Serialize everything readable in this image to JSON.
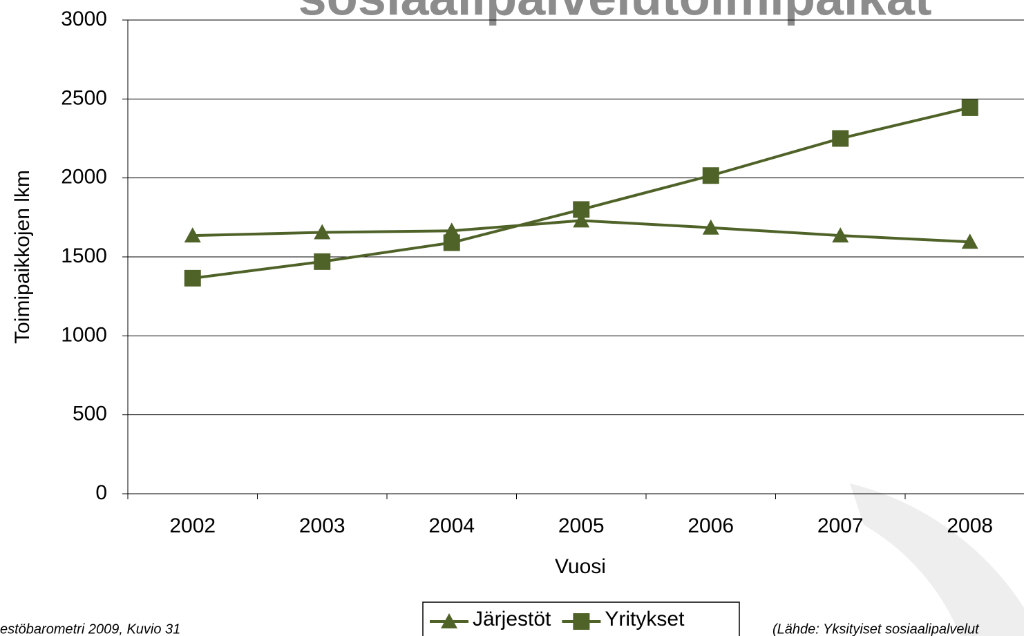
{
  "chart_data": {
    "type": "line",
    "title": "sosiaalipalvelutoimipaikat",
    "x_label": "Vuosi",
    "y_label": "Toimipaikkojen lkm",
    "categories": [
      "2002",
      "2003",
      "2004",
      "2005",
      "2006",
      "2007",
      "2008"
    ],
    "series": [
      {
        "name": "Järjestöt",
        "color": "#4f6228",
        "marker": "triangle",
        "values": [
          1635,
          1655,
          1665,
          1730,
          1685,
          1635,
          1595
        ]
      },
      {
        "name": "Yritykset",
        "color": "#4f6228",
        "marker": "square",
        "values": [
          1365,
          1470,
          1590,
          1800,
          2015,
          2250,
          2445
        ]
      }
    ],
    "ylim": [
      0,
      3000
    ],
    "yticks": [
      0,
      500,
      1000,
      1500,
      2000,
      2500,
      3000
    ],
    "grid": true,
    "legend": "bottom",
    "footnote_left": "estöbarometri 2009, Kuvio 31",
    "footnote_right": "(Lähde: Yksityiset sosiaalipalvelut"
  }
}
